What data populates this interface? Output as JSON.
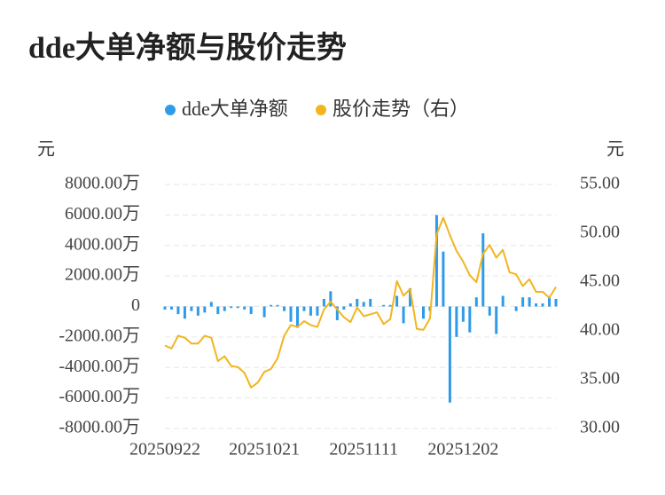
{
  "chart_data": {
    "type": "combo",
    "title": "dde大单净额与股价走势",
    "ylabel": "元",
    "y2label": "元",
    "categories": [
      "20250922",
      null,
      null,
      null,
      null,
      null,
      null,
      null,
      null,
      null,
      null,
      null,
      null,
      null,
      null,
      "20251021",
      null,
      null,
      null,
      null,
      null,
      null,
      null,
      null,
      null,
      null,
      null,
      null,
      null,
      null,
      "20251111",
      null,
      null,
      null,
      null,
      null,
      null,
      null,
      null,
      null,
      null,
      null,
      null,
      null,
      null,
      "20251202",
      null,
      null,
      null,
      null,
      null,
      null,
      null,
      null,
      null,
      null,
      null,
      null,
      null,
      null
    ],
    "series": [
      {
        "name": "dde大单净额",
        "type": "bar",
        "color": "#2f9be8",
        "values": [
          -200,
          -200,
          -500,
          -800,
          -300,
          -600,
          -400,
          300,
          -500,
          -300,
          -100,
          -100,
          -200,
          -500,
          0,
          -700,
          100,
          100,
          -300,
          -1000,
          -1400,
          -300,
          -600,
          -600,
          500,
          1000,
          -900,
          -200,
          200,
          500,
          300,
          500,
          0,
          100,
          100,
          700,
          -1100,
          1200,
          0,
          -800,
          -300,
          6000,
          3600,
          -6300,
          -2000,
          -1000,
          -1700,
          600,
          4800,
          -600,
          -1800,
          700,
          0,
          -300,
          600,
          600,
          200,
          200,
          600,
          500
        ]
      },
      {
        "name": "股价走势（右）",
        "type": "line",
        "axis": "y2",
        "color": "#f2b51f",
        "values": [
          38.5,
          38.2,
          39.5,
          39.3,
          38.7,
          38.7,
          39.5,
          39.3,
          36.9,
          37.4,
          36.4,
          36.3,
          35.7,
          34.2,
          34.7,
          35.8,
          36.1,
          37.2,
          39.5,
          40.6,
          40.4,
          41.0,
          40.6,
          40.4,
          42.2,
          43.0,
          42.2,
          41.4,
          40.9,
          42.4,
          41.5,
          41.7,
          41.9,
          40.7,
          41.2,
          45.1,
          43.6,
          44.3,
          40.2,
          40.1,
          41.3,
          49.9,
          51.6,
          49.8,
          48.2,
          47.1,
          45.7,
          45.0,
          47.9,
          48.8,
          47.5,
          48.3,
          46.0,
          45.8,
          44.6,
          45.3,
          44.0,
          44.0,
          43.4,
          44.5
        ]
      }
    ],
    "ylim": [
      -8000,
      8000
    ],
    "yticks": [
      {
        "value": -8000,
        "label": "-8000.00万"
      },
      {
        "value": -6000,
        "label": "-6000.00万"
      },
      {
        "value": -4000,
        "label": "-4000.00万"
      },
      {
        "value": -2000,
        "label": "-2000.00万"
      },
      0,
      {
        "value": 2000,
        "label": "2000.00万"
      },
      {
        "value": 4000,
        "label": "4000.00万"
      },
      {
        "value": 6000,
        "label": "6000.00万"
      },
      {
        "value": 8000,
        "label": "8000.00万"
      }
    ],
    "y2lim": [
      30,
      55
    ],
    "y2ticks": [
      {
        "value": 30,
        "label": "30.00"
      },
      {
        "value": 35,
        "label": "35.00"
      },
      {
        "value": 40,
        "label": "40.00"
      },
      {
        "value": 45,
        "label": "45.00"
      },
      {
        "value": 50,
        "label": "50.00"
      },
      {
        "value": 55,
        "label": "55.00"
      }
    ],
    "grid": true
  }
}
